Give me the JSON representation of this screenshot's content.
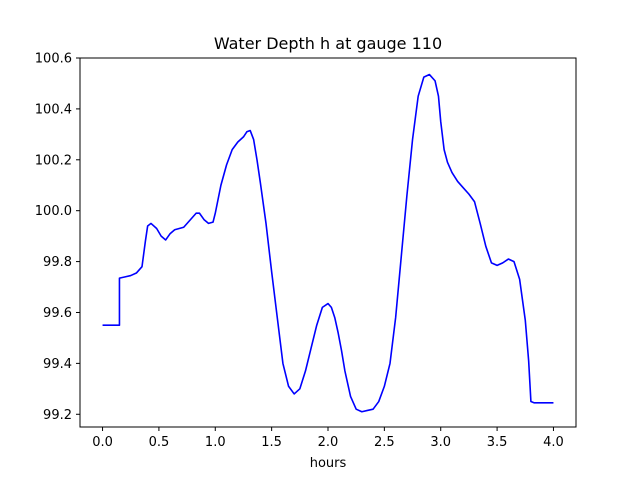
{
  "chart_data": {
    "type": "line",
    "title": "Water Depth h at gauge 110",
    "xlabel": "hours",
    "ylabel": "",
    "xlim": [
      -0.2,
      4.2
    ],
    "ylim": [
      99.15,
      100.6
    ],
    "xticks": [
      "0.0",
      "0.5",
      "1.0",
      "1.5",
      "2.0",
      "2.5",
      "3.0",
      "3.5",
      "4.0"
    ],
    "yticks": [
      "99.2",
      "99.4",
      "99.6",
      "99.8",
      "100.0",
      "100.2",
      "100.4",
      "100.6"
    ],
    "grid": false,
    "line_color": "#0000ff",
    "series": [
      {
        "name": "",
        "x": [
          0.0,
          0.15,
          0.15,
          0.2,
          0.25,
          0.3,
          0.35,
          0.38,
          0.4,
          0.43,
          0.48,
          0.52,
          0.56,
          0.6,
          0.64,
          0.72,
          0.78,
          0.83,
          0.86,
          0.9,
          0.94,
          0.98,
          1.0,
          1.05,
          1.1,
          1.15,
          1.2,
          1.25,
          1.28,
          1.31,
          1.34,
          1.37,
          1.4,
          1.45,
          1.5,
          1.55,
          1.6,
          1.65,
          1.7,
          1.75,
          1.8,
          1.85,
          1.9,
          1.95,
          2.0,
          2.03,
          2.06,
          2.09,
          2.12,
          2.15,
          2.2,
          2.25,
          2.3,
          2.35,
          2.4,
          2.45,
          2.5,
          2.55,
          2.6,
          2.65,
          2.7,
          2.75,
          2.8,
          2.85,
          2.9,
          2.95,
          2.98,
          3.0,
          3.03,
          3.06,
          3.1,
          3.15,
          3.2,
          3.25,
          3.3,
          3.35,
          3.4,
          3.45,
          3.5,
          3.55,
          3.6,
          3.65,
          3.7,
          3.75,
          3.78,
          3.8,
          3.83,
          3.86,
          3.9,
          3.95,
          4.0
        ],
        "y": [
          99.55,
          99.55,
          99.735,
          99.74,
          99.745,
          99.755,
          99.78,
          99.88,
          99.94,
          99.95,
          99.93,
          99.9,
          99.885,
          99.91,
          99.925,
          99.935,
          99.965,
          99.99,
          99.99,
          99.965,
          99.95,
          99.955,
          99.99,
          100.1,
          100.18,
          100.24,
          100.27,
          100.29,
          100.31,
          100.315,
          100.28,
          100.2,
          100.11,
          99.95,
          99.76,
          99.58,
          99.4,
          99.31,
          99.28,
          99.3,
          99.37,
          99.46,
          99.55,
          99.62,
          99.635,
          99.62,
          99.58,
          99.52,
          99.45,
          99.37,
          99.27,
          99.22,
          99.21,
          99.215,
          99.22,
          99.25,
          99.31,
          99.4,
          99.58,
          99.82,
          100.06,
          100.28,
          100.45,
          100.525,
          100.535,
          100.51,
          100.45,
          100.35,
          100.24,
          100.19,
          100.15,
          100.115,
          100.09,
          100.065,
          100.035,
          99.95,
          99.86,
          99.795,
          99.785,
          99.795,
          99.81,
          99.8,
          99.73,
          99.57,
          99.41,
          99.25,
          99.245,
          99.245,
          99.245,
          99.245,
          99.245
        ]
      }
    ]
  }
}
